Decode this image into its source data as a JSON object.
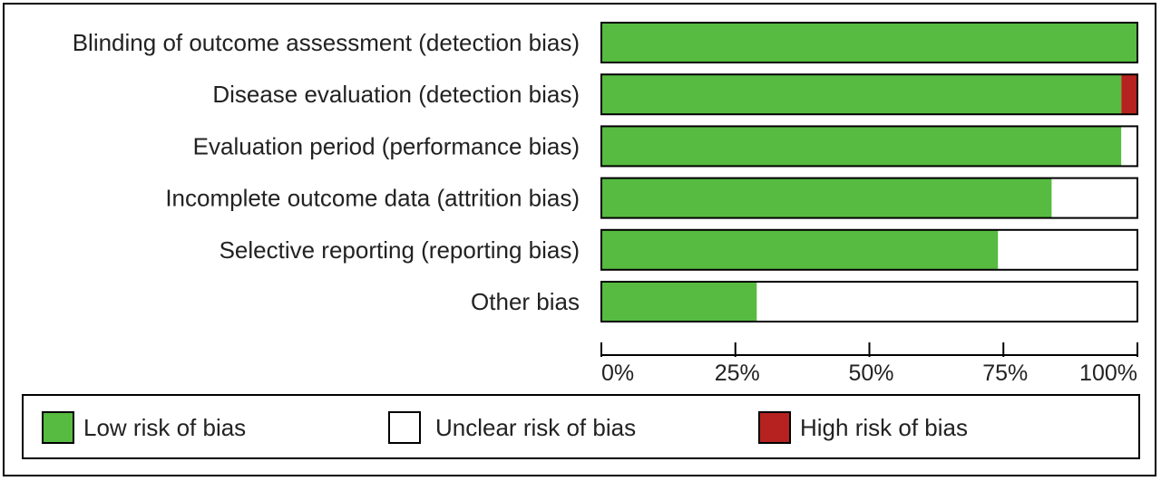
{
  "chart_data": {
    "type": "bar",
    "orientation": "horizontal",
    "stacked": true,
    "categories": [
      "Blinding of outcome assessment (detection bias)",
      "Disease evaluation (detection bias)",
      "Evaluation period (performance bias)",
      "Incomplete outcome data (attrition bias)",
      "Selective reporting (reporting bias)",
      "Other bias"
    ],
    "series": [
      {
        "name": "Low risk of bias",
        "color": "#56bb40",
        "values": [
          100,
          97,
          97,
          84,
          74,
          29
        ]
      },
      {
        "name": "Unclear risk of bias",
        "color": "#ffffff",
        "values": [
          0,
          0,
          3,
          16,
          26,
          71
        ]
      },
      {
        "name": "High risk of bias",
        "color": "#b5221f",
        "values": [
          0,
          3,
          0,
          0,
          0,
          0
        ]
      }
    ],
    "xticks": [
      "0%",
      "25%",
      "50%",
      "75%",
      "100%"
    ],
    "xlim": [
      0,
      100
    ],
    "legend_position": "bottom"
  }
}
